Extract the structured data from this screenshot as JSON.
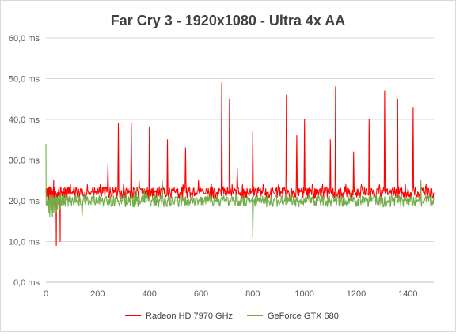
{
  "chart_data": {
    "type": "line",
    "title": "Far Cry 3 - 1920x1080 - Ultra 4x AA",
    "xlabel": "",
    "ylabel": "",
    "xlim": [
      0,
      1500
    ],
    "ylim": [
      0,
      60
    ],
    "x_ticks": [
      0,
      200,
      400,
      600,
      800,
      1000,
      1200,
      1400
    ],
    "y_ticks": [
      0,
      10,
      20,
      30,
      40,
      50,
      60
    ],
    "y_tick_labels": [
      "0,0 ms",
      "10,0 ms",
      "20,0 ms",
      "30,0 ms",
      "40,0 ms",
      "50,0 ms",
      "60,0 ms"
    ],
    "grid": "horizontal",
    "legend_position": "bottom",
    "series": [
      {
        "name": "Radeon HD 7970 GHz",
        "color": "#ff0000",
        "baseline_ms": 22,
        "x": [
          0,
          5,
          10,
          15,
          20,
          25,
          30,
          35,
          40,
          45,
          50,
          55,
          60,
          65,
          70,
          75,
          80,
          85,
          90,
          95,
          100,
          110,
          120,
          130,
          140,
          150,
          160,
          170,
          180,
          190,
          200,
          210,
          220,
          230,
          240,
          250,
          260,
          270,
          280,
          290,
          300,
          310,
          320,
          330,
          340,
          350,
          360,
          370,
          380,
          390,
          400,
          410,
          420,
          430,
          440,
          450,
          460,
          470,
          480,
          490,
          500,
          510,
          520,
          530,
          540,
          550,
          560,
          570,
          580,
          590,
          600,
          610,
          620,
          630,
          640,
          650,
          660,
          670,
          680,
          690,
          700,
          710,
          720,
          730,
          740,
          750,
          760,
          770,
          780,
          790,
          800,
          810,
          820,
          830,
          840,
          850,
          860,
          870,
          880,
          890,
          900,
          910,
          920,
          930,
          940,
          950,
          960,
          970,
          980,
          990,
          1000,
          1010,
          1020,
          1030,
          1040,
          1050,
          1060,
          1070,
          1080,
          1090,
          1100,
          1110,
          1120,
          1130,
          1140,
          1150,
          1160,
          1170,
          1180,
          1190,
          1200,
          1210,
          1220,
          1230,
          1240,
          1250,
          1260,
          1270,
          1280,
          1290,
          1300,
          1310,
          1320,
          1330,
          1340,
          1350,
          1360,
          1370,
          1380,
          1390,
          1400,
          1410,
          1420,
          1430,
          1440,
          1450,
          1460,
          1470,
          1480,
          1490,
          1500
        ],
        "y": [
          22,
          23,
          20,
          17,
          21,
          18,
          25,
          17,
          9,
          19,
          23,
          10,
          22,
          21,
          22,
          23,
          22,
          23,
          22,
          24,
          22,
          23,
          22,
          21,
          23,
          22,
          24,
          22,
          23,
          22,
          23,
          24,
          22,
          23,
          29,
          22,
          23,
          22,
          39,
          22,
          24,
          23,
          22,
          39,
          23,
          22,
          25,
          23,
          23,
          22,
          38,
          23,
          22,
          23,
          22,
          24,
          23,
          35,
          22,
          23,
          22,
          23,
          22,
          24,
          33,
          23,
          22,
          23,
          22,
          25,
          23,
          22,
          23,
          22,
          24,
          23,
          22,
          23,
          49,
          23,
          22,
          45,
          24,
          23,
          28,
          22,
          24,
          23,
          22,
          23,
          37,
          23,
          22,
          23,
          24,
          23,
          22,
          23,
          22,
          23,
          24,
          22,
          23,
          46,
          22,
          23,
          22,
          36,
          23,
          22,
          40,
          23,
          22,
          24,
          23,
          22,
          23,
          24,
          22,
          23,
          35,
          23,
          48,
          22,
          23,
          22,
          24,
          23,
          22,
          32,
          22,
          23,
          24,
          22,
          23,
          40,
          23,
          22,
          23,
          24,
          22,
          47,
          23,
          22,
          23,
          22,
          45,
          23,
          22,
          24,
          23,
          22,
          43,
          23,
          22,
          23,
          22,
          24,
          23,
          22,
          22
        ]
      },
      {
        "name": "GeForce GTX 680",
        "color": "#70ad47",
        "baseline_ms": 20,
        "x": [
          0,
          5,
          10,
          15,
          20,
          25,
          30,
          35,
          40,
          45,
          50,
          55,
          60,
          65,
          70,
          75,
          80,
          85,
          90,
          95,
          100,
          110,
          120,
          130,
          140,
          150,
          160,
          170,
          180,
          190,
          200,
          210,
          220,
          230,
          240,
          250,
          260,
          270,
          280,
          290,
          300,
          310,
          320,
          330,
          340,
          350,
          360,
          370,
          380,
          390,
          400,
          410,
          420,
          430,
          440,
          450,
          460,
          470,
          480,
          490,
          500,
          510,
          520,
          530,
          540,
          550,
          560,
          570,
          580,
          590,
          600,
          610,
          620,
          630,
          640,
          650,
          660,
          670,
          680,
          690,
          700,
          710,
          720,
          730,
          740,
          750,
          760,
          770,
          780,
          790,
          800,
          810,
          820,
          830,
          840,
          850,
          860,
          870,
          880,
          890,
          900,
          910,
          920,
          930,
          940,
          950,
          960,
          970,
          980,
          990,
          1000,
          1010,
          1020,
          1030,
          1040,
          1050,
          1060,
          1070,
          1080,
          1090,
          1100,
          1110,
          1120,
          1130,
          1140,
          1150,
          1160,
          1170,
          1180,
          1190,
          1200,
          1210,
          1220,
          1230,
          1240,
          1250,
          1260,
          1270,
          1280,
          1290,
          1300,
          1310,
          1320,
          1330,
          1340,
          1350,
          1360,
          1370,
          1380,
          1390,
          1400,
          1410,
          1420,
          1430,
          1440,
          1450,
          1460,
          1470,
          1480,
          1490,
          1500
        ],
        "y": [
          34,
          19,
          17,
          16,
          17,
          16,
          17,
          18,
          17,
          18,
          19,
          18,
          19,
          20,
          19,
          20,
          21,
          20,
          20,
          21,
          20,
          21,
          20,
          21,
          16,
          20,
          21,
          20,
          21,
          19,
          20,
          21,
          20,
          21,
          20,
          21,
          20,
          21,
          20,
          21,
          21,
          22,
          21,
          22,
          22,
          23,
          22,
          21,
          23,
          22,
          21,
          20,
          22,
          21,
          20,
          25,
          21,
          20,
          21,
          20,
          21,
          20,
          21,
          20,
          21,
          20,
          21,
          20,
          21,
          20,
          21,
          20,
          21,
          20,
          21,
          20,
          21,
          20,
          21,
          20,
          21,
          20,
          21,
          20,
          21,
          20,
          21,
          20,
          21,
          20,
          11,
          21,
          20,
          21,
          20,
          21,
          20,
          21,
          20,
          21,
          20,
          21,
          20,
          21,
          20,
          21,
          20,
          21,
          20,
          21,
          20,
          21,
          20,
          21,
          20,
          21,
          20,
          21,
          20,
          21,
          20,
          21,
          20,
          21,
          20,
          21,
          20,
          21,
          20,
          21,
          20,
          21,
          20,
          21,
          20,
          21,
          20,
          21,
          20,
          21,
          20,
          21,
          20,
          21,
          20,
          21,
          20,
          21,
          20,
          21,
          20,
          21,
          20,
          21,
          20,
          25,
          20,
          21,
          20,
          21,
          21
        ]
      }
    ]
  }
}
